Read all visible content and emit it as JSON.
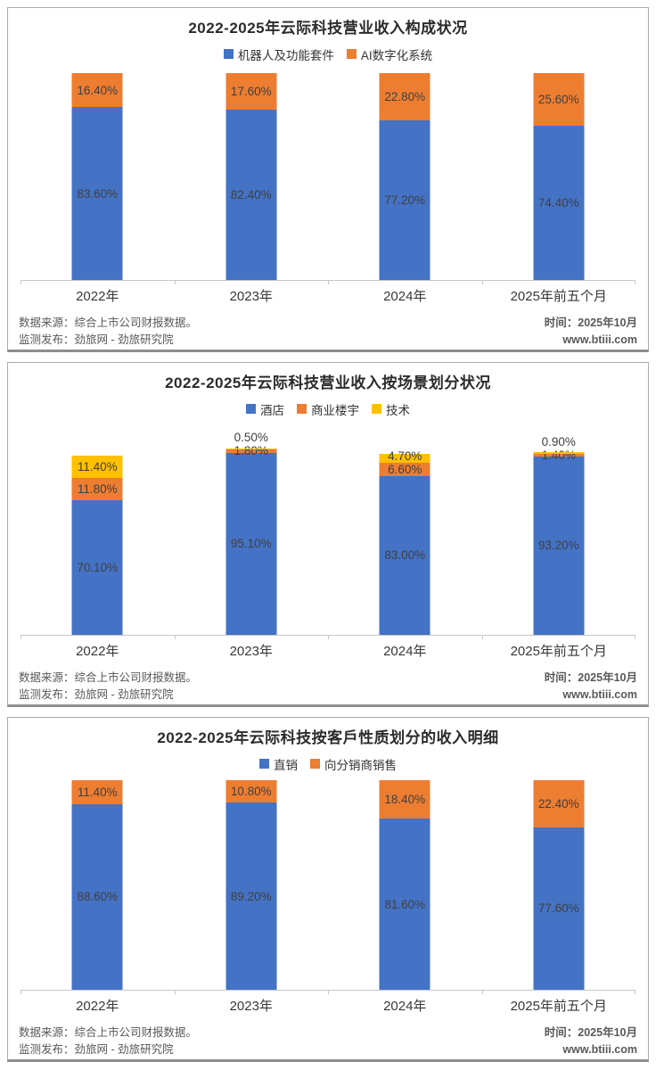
{
  "footer": {
    "source_line": "数据来源：综合上市公司财报数据。",
    "publish_line": "监测发布：劲旅网 - 劲旅研究院",
    "time_line": "时间：2025年10月",
    "website": "www.btiii.com"
  },
  "colors": {
    "series_blue": "#4472C4",
    "series_orange": "#ED7D31",
    "series_yellow": "#FFC000",
    "label_text": "#404040",
    "footer_text": "#595959",
    "axis_line": "#C8C8C8"
  },
  "chart_data": [
    {
      "type": "bar",
      "stacked": true,
      "title": "2022-2025年云际科技营业收入构成状况",
      "categories": [
        "2022年",
        "2023年",
        "2024年",
        "2025年前五个月"
      ],
      "series": [
        {
          "name": "机器人及功能套件",
          "color": "#4472C4",
          "values": [
            83.6,
            82.4,
            77.2,
            74.4
          ]
        },
        {
          "name": "AI数字化系统",
          "color": "#ED7D31",
          "values": [
            16.4,
            17.6,
            22.8,
            25.6
          ]
        }
      ],
      "xlabel": "",
      "ylabel": "",
      "ylim": [
        0,
        100
      ],
      "value_format": "0.00%",
      "legend_position": "top",
      "grid": false
    },
    {
      "type": "bar",
      "stacked": true,
      "title": "2022-2025年云际科技营业收入按场景划分状况",
      "categories": [
        "2022年",
        "2023年",
        "2024年",
        "2025年前五个月"
      ],
      "series": [
        {
          "name": "酒店",
          "color": "#4472C4",
          "values": [
            70.1,
            95.1,
            83.0,
            93.2
          ]
        },
        {
          "name": "商业楼宇",
          "color": "#ED7D31",
          "values": [
            11.8,
            1.8,
            6.6,
            1.4
          ]
        },
        {
          "name": "技术",
          "color": "#FFC000",
          "values": [
            11.4,
            0.5,
            4.7,
            0.9
          ]
        }
      ],
      "xlabel": "",
      "ylabel": "",
      "ylim": [
        0,
        100
      ],
      "value_format": "0.00%",
      "legend_position": "top",
      "grid": false
    },
    {
      "type": "bar",
      "stacked": true,
      "title": "2022-2025年云际科技按客戶性质划分的收入明细",
      "categories": [
        "2022年",
        "2023年",
        "2024年",
        "2025年前五个月"
      ],
      "series": [
        {
          "name": "直销",
          "color": "#4472C4",
          "values": [
            88.6,
            89.2,
            81.6,
            77.6
          ]
        },
        {
          "name": "向分销商销售",
          "color": "#ED7D31",
          "values": [
            11.4,
            10.8,
            18.4,
            22.4
          ]
        }
      ],
      "xlabel": "",
      "ylabel": "",
      "ylim": [
        0,
        100
      ],
      "value_format": "0.00%",
      "legend_position": "top",
      "grid": false
    }
  ]
}
